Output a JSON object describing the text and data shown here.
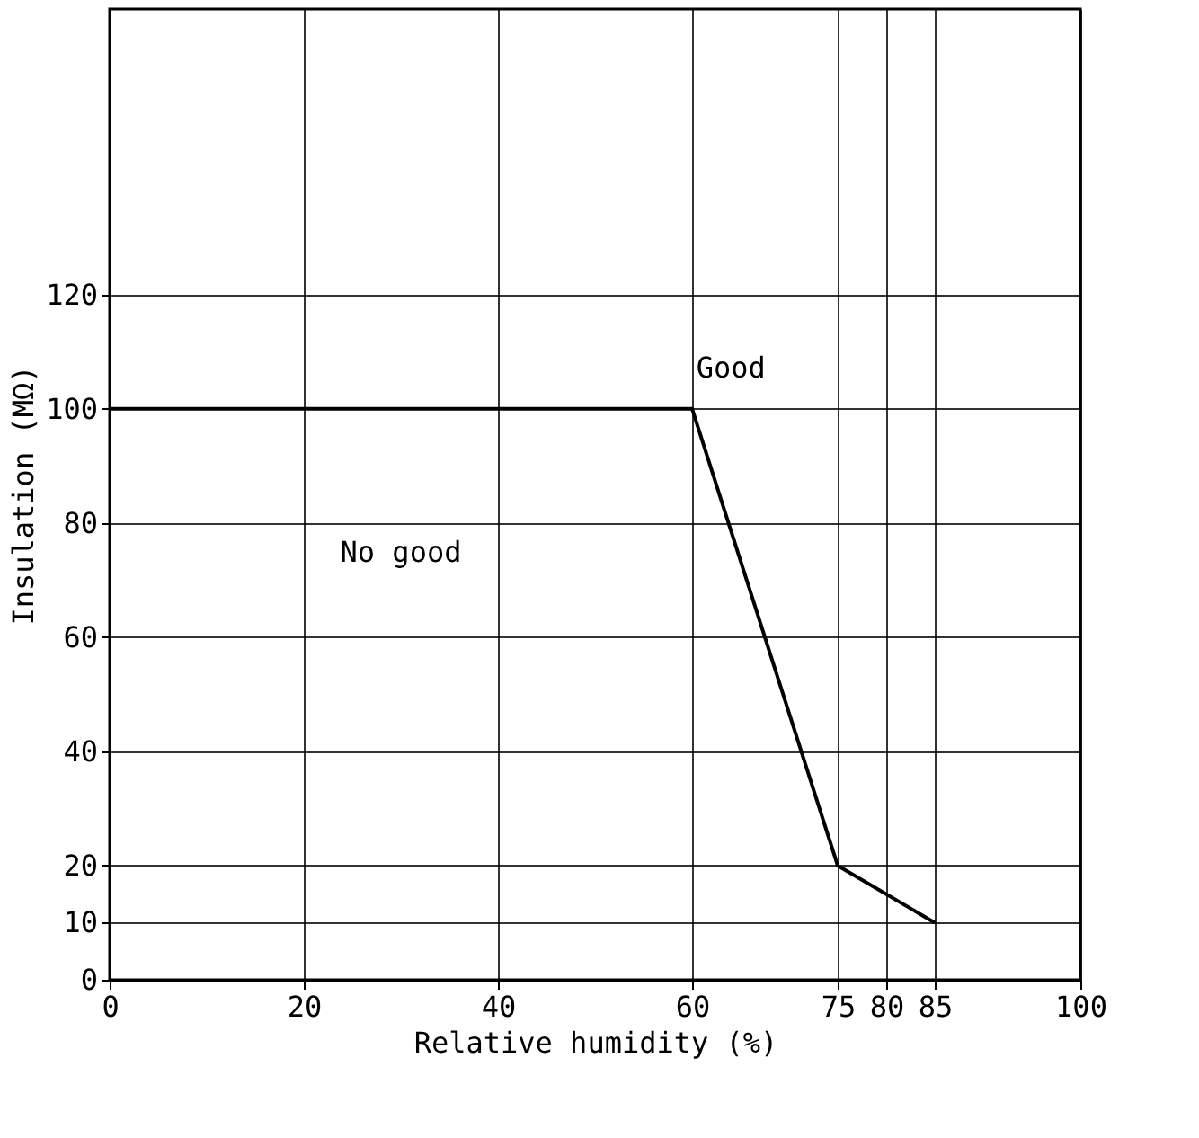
{
  "chart_data": {
    "type": "line",
    "xlabel": "Relative humidity (%)",
    "ylabel": "Insulation (MΩ)",
    "x": [
      0,
      60,
      75,
      85
    ],
    "values": [
      100,
      100,
      20,
      10
    ],
    "color": "#000000",
    "xlim": [
      0,
      100
    ],
    "xticks": [
      0,
      20,
      40,
      60,
      75,
      80,
      85,
      100
    ],
    "ylim": [
      0,
      170
    ],
    "yticks": [
      0,
      10,
      20,
      40,
      60,
      80,
      100,
      120
    ],
    "grid": true,
    "marker": "none",
    "line_style": "solid",
    "annotations": [
      "Good",
      "No good"
    ]
  }
}
